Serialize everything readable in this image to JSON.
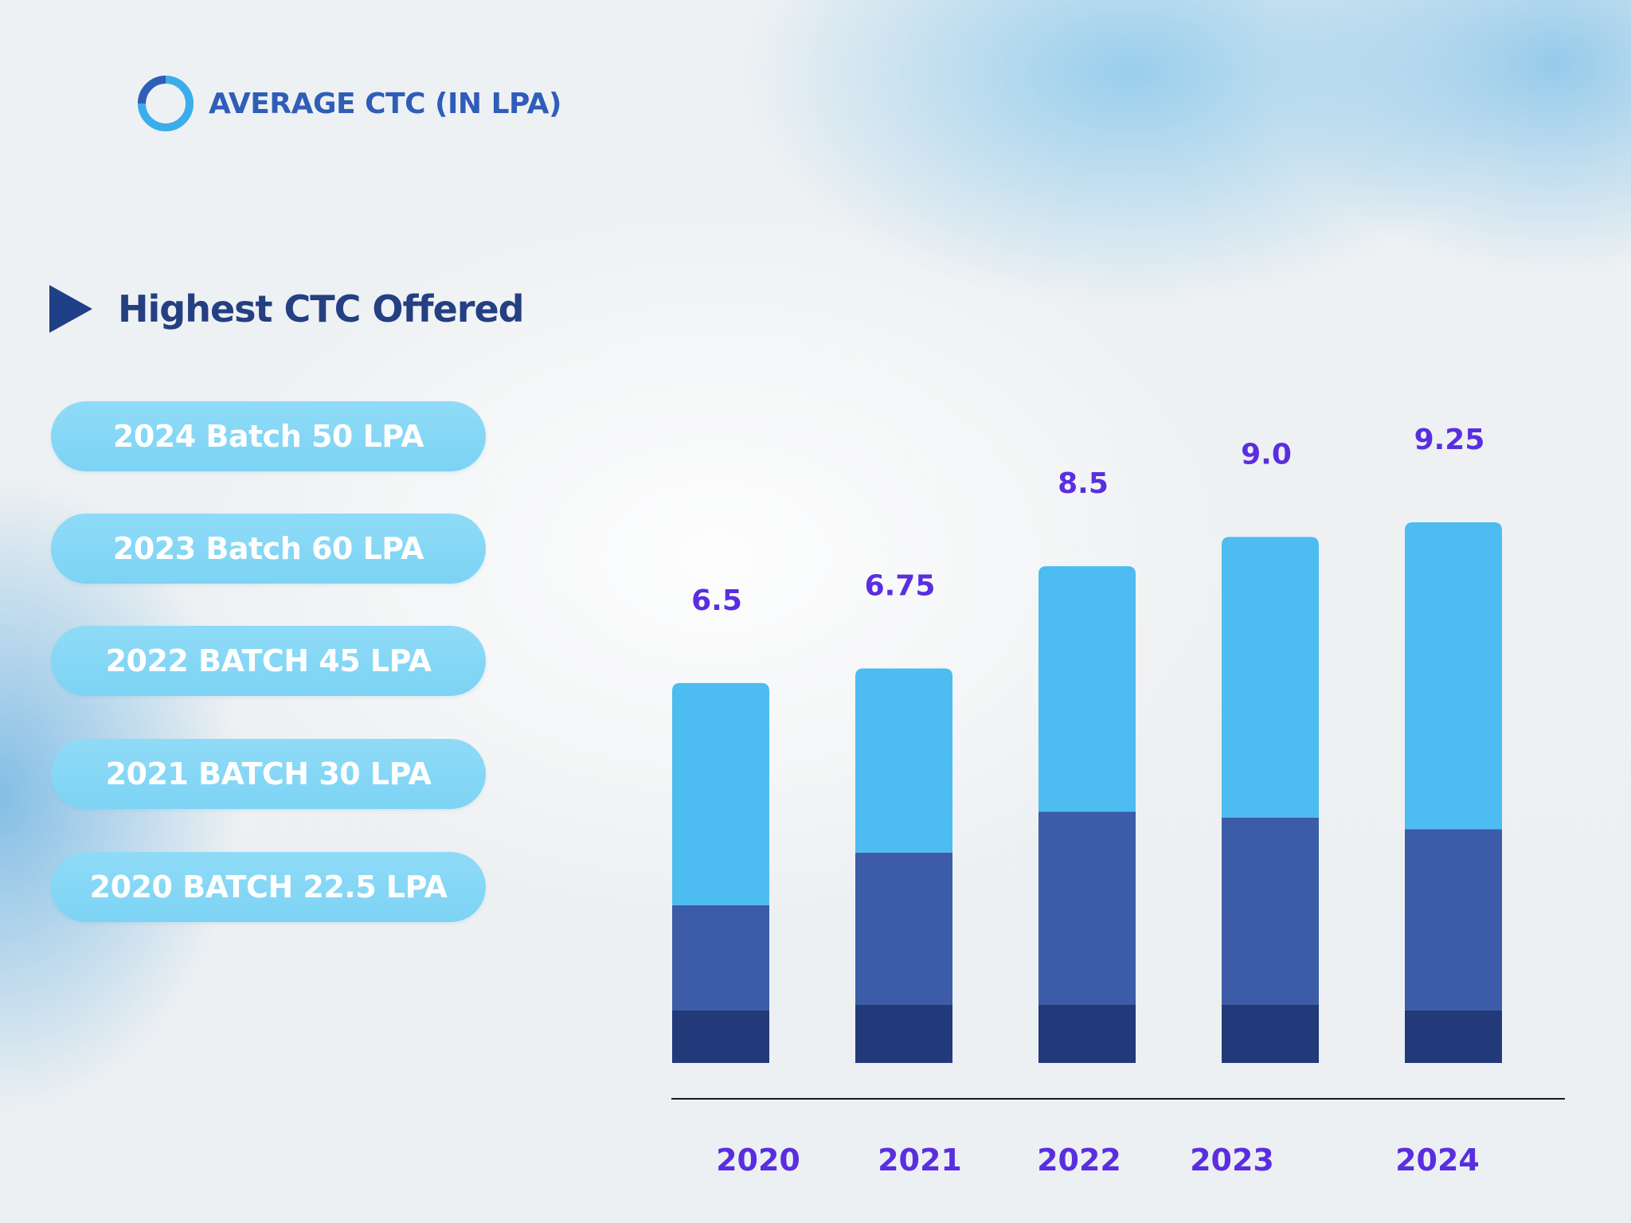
{
  "header": {
    "title": "AVERAGE CTC (IN LPA)",
    "ring_color": "#3aaeea",
    "ring_dark": "#2f5db8"
  },
  "subhead": {
    "title": "Highest CTC Offered"
  },
  "highest_ctc": [
    {
      "label": "2024 Batch 50 LPA"
    },
    {
      "label": "2023 Batch 60 LPA"
    },
    {
      "label": "2022 BATCH 45 LPA"
    },
    {
      "label": "2021 BATCH 30 LPA"
    },
    {
      "label": "2020 BATCH 22.5 LPA"
    }
  ],
  "chart_data": {
    "type": "bar",
    "stacked": true,
    "title": "AVERAGE CTC (IN LPA)",
    "xlabel": "",
    "ylabel": "",
    "categories": [
      "2020",
      "2021",
      "2022",
      "2023",
      "2024"
    ],
    "data_labels": [
      "6.5",
      "6.75",
      "8.5",
      "9.0",
      "9.25"
    ],
    "values": [
      6.5,
      6.75,
      8.5,
      9.0,
      9.25
    ],
    "segments": [
      {
        "color": "#22397a",
        "values": [
          0.9,
          1.0,
          1.0,
          1.0,
          0.9
        ]
      },
      {
        "color": "#3c5ca8",
        "values": [
          1.8,
          2.6,
          3.3,
          3.2,
          3.1
        ]
      },
      {
        "color": "#4dbcf0",
        "values": [
          3.8,
          3.15,
          4.2,
          4.8,
          5.25
        ]
      }
    ],
    "ylim": [
      0,
      10.2
    ],
    "grid": false,
    "label_color": "#5a2ee0"
  }
}
